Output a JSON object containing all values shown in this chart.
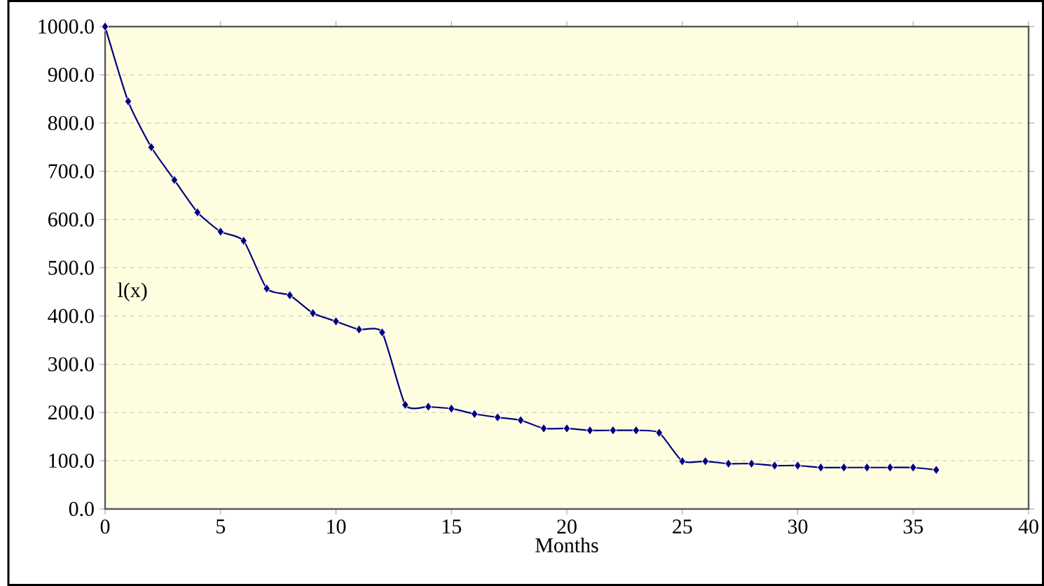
{
  "chart_data": {
    "type": "line",
    "xlabel": "Months",
    "annotations": [
      "l(x)"
    ],
    "x": [
      0,
      1,
      2,
      3,
      4,
      5,
      6,
      7,
      8,
      9,
      10,
      11,
      12,
      13,
      14,
      15,
      16,
      17,
      18,
      19,
      20,
      21,
      22,
      23,
      24,
      25,
      26,
      27,
      28,
      29,
      30,
      31,
      32,
      33,
      34,
      35,
      36
    ],
    "series": [
      {
        "color": "#000080",
        "values": [
          1000,
          845,
          750,
          682,
          615,
          575,
          556,
          457,
          443,
          406,
          389,
          372,
          366,
          216,
          212,
          208,
          197,
          190,
          184,
          167,
          167,
          163,
          163,
          163,
          158,
          99,
          99,
          94,
          94,
          90,
          90,
          86,
          86,
          86,
          86,
          86,
          81
        ]
      }
    ],
    "xlim": [
      0,
      40
    ],
    "xticks": [
      0,
      5,
      10,
      15,
      20,
      25,
      30,
      35,
      40
    ],
    "ylim": [
      0,
      1000
    ],
    "yticks": [
      {
        "value": 0,
        "label": "0.0"
      },
      {
        "value": 100,
        "label": "100.0"
      },
      {
        "value": 200,
        "label": "200.0"
      },
      {
        "value": 300,
        "label": "300.0"
      },
      {
        "value": 400,
        "label": "400.0"
      },
      {
        "value": 500,
        "label": "500.0"
      },
      {
        "value": 600,
        "label": "600.0"
      },
      {
        "value": 700,
        "label": "700.0"
      },
      {
        "value": 800,
        "label": "800.0"
      },
      {
        "value": 900,
        "label": "900.0"
      },
      {
        "value": 1000,
        "label": "1000.0"
      }
    ],
    "grid": "y",
    "marker": "diamond",
    "line_style": "solid"
  }
}
